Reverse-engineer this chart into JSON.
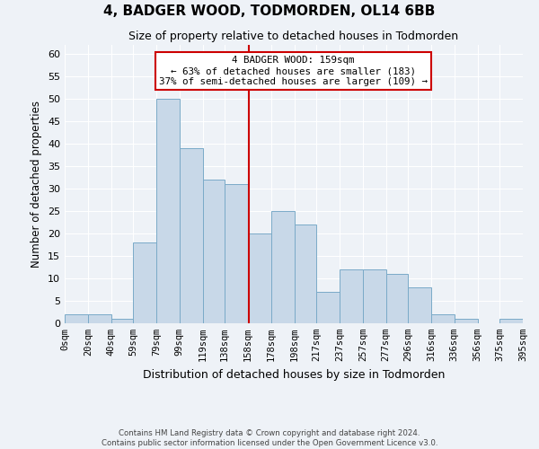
{
  "title": "4, BADGER WOOD, TODMORDEN, OL14 6BB",
  "subtitle": "Size of property relative to detached houses in Todmorden",
  "xlabel": "Distribution of detached houses by size in Todmorden",
  "ylabel": "Number of detached properties",
  "bin_edges": [
    0,
    20,
    40,
    59,
    79,
    99,
    119,
    138,
    158,
    178,
    198,
    217,
    237,
    257,
    277,
    296,
    316,
    336,
    356,
    375,
    395
  ],
  "bar_heights": [
    2,
    2,
    1,
    18,
    50,
    39,
    32,
    31,
    20,
    25,
    22,
    7,
    12,
    12,
    11,
    8,
    2,
    1,
    0,
    1
  ],
  "bar_color": "#c8d8e8",
  "bar_edge_color": "#7aaac8",
  "property_line_x": 159,
  "property_line_color": "#cc0000",
  "annotation_title": "4 BADGER WOOD: 159sqm",
  "annotation_line1": "← 63% of detached houses are smaller (183)",
  "annotation_line2": "37% of semi-detached houses are larger (109) →",
  "annotation_box_color": "#ffffff",
  "annotation_box_edge_color": "#cc0000",
  "ylim": [
    0,
    62
  ],
  "yticks": [
    0,
    5,
    10,
    15,
    20,
    25,
    30,
    35,
    40,
    45,
    50,
    55,
    60
  ],
  "tick_labels": [
    "0sqm",
    "20sqm",
    "40sqm",
    "59sqm",
    "79sqm",
    "99sqm",
    "119sqm",
    "138sqm",
    "158sqm",
    "178sqm",
    "198sqm",
    "217sqm",
    "237sqm",
    "257sqm",
    "277sqm",
    "296sqm",
    "316sqm",
    "336sqm",
    "356sqm",
    "375sqm",
    "395sqm"
  ],
  "footer_line1": "Contains HM Land Registry data © Crown copyright and database right 2024.",
  "footer_line2": "Contains public sector information licensed under the Open Government Licence v3.0.",
  "background_color": "#eef2f7",
  "grid_color": "#ffffff"
}
